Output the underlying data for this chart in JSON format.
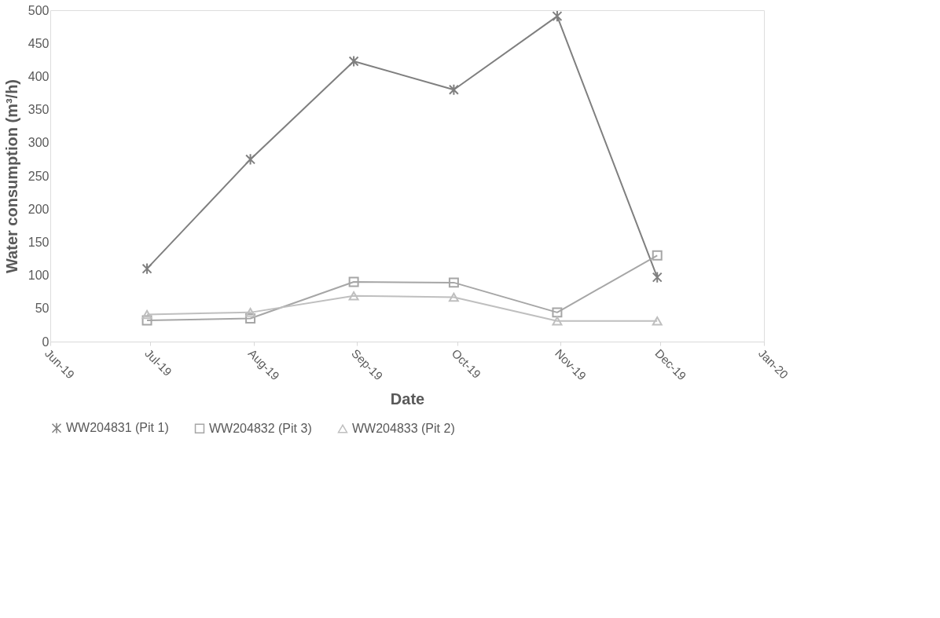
{
  "chart_data": {
    "type": "line",
    "xlabel": "Date",
    "ylabel": "Water consumption (m³/h)",
    "x": [
      "2019-06-30",
      "2019-07-31",
      "2019-08-31",
      "2019-09-30",
      "2019-10-31",
      "2019-11-30"
    ],
    "series": [
      {
        "name": "WW204831 (Pit 1)",
        "color": "#7f7f7f",
        "marker": "cross",
        "values": [
          110,
          275,
          423,
          380,
          491,
          97
        ]
      },
      {
        "name": "WW204832 (Pit 3)",
        "color": "#a6a6a6",
        "marker": "square",
        "values": [
          32,
          35,
          90,
          89,
          44,
          130
        ]
      },
      {
        "name": "WW204833 (Pit 2)",
        "color": "#bfbfbf",
        "marker": "triangle",
        "values": [
          41,
          44,
          69,
          67,
          31,
          31
        ]
      }
    ],
    "xlim": [
      "2019-06-01",
      "2020-01-01"
    ],
    "xticks": [
      {
        "value": "2019-06-01",
        "label": "Jun-19"
      },
      {
        "value": "2019-07-01",
        "label": "Jul-19"
      },
      {
        "value": "2019-08-01",
        "label": "Aug-19"
      },
      {
        "value": "2019-09-01",
        "label": "Sep-19"
      },
      {
        "value": "2019-10-01",
        "label": "Oct-19"
      },
      {
        "value": "2019-11-01",
        "label": "Nov-19"
      },
      {
        "value": "2019-12-01",
        "label": "Dec-19"
      },
      {
        "value": "2020-01-01",
        "label": "Jan-20"
      }
    ],
    "ylim": [
      0,
      500
    ],
    "yticks": [
      0,
      50,
      100,
      150,
      200,
      250,
      300,
      350,
      400,
      450,
      500
    ],
    "grid": false,
    "legend": "bottom",
    "line_style": "solid"
  }
}
